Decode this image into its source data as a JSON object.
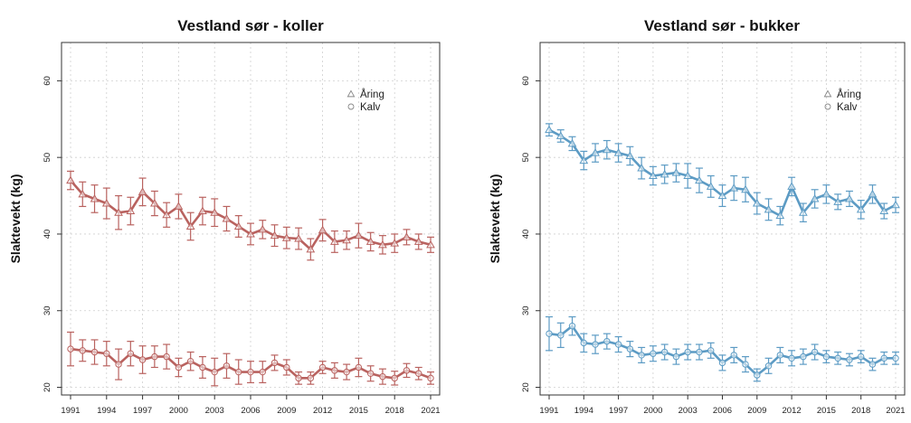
{
  "chart_data": [
    {
      "type": "line",
      "title": "Vestland sør - koller",
      "xlabel": "",
      "ylabel": "Slaktevekt (kg)",
      "xlim": [
        1991,
        2021
      ],
      "ylim": [
        19,
        65
      ],
      "yticks": [
        20,
        30,
        40,
        50,
        60
      ],
      "xticks": [
        1991,
        1994,
        1997,
        2000,
        2003,
        2006,
        2009,
        2012,
        2015,
        2018,
        2021
      ],
      "grid": true,
      "legend_position": "top-right",
      "color": "#b9625f",
      "error_bars": true,
      "x": [
        1991,
        1992,
        1993,
        1994,
        1995,
        1996,
        1997,
        1998,
        1999,
        2000,
        2001,
        2002,
        2003,
        2004,
        2005,
        2006,
        2007,
        2008,
        2009,
        2010,
        2011,
        2012,
        2013,
        2014,
        2015,
        2016,
        2017,
        2018,
        2019,
        2020,
        2021
      ],
      "series": [
        {
          "name": "Åring",
          "marker": "triangle",
          "values": [
            47.0,
            45.2,
            44.6,
            44.0,
            42.8,
            43.0,
            45.5,
            44.0,
            42.5,
            43.6,
            41.0,
            43.0,
            42.8,
            42.0,
            41.0,
            40.0,
            40.6,
            39.8,
            39.5,
            39.4,
            38.0,
            40.5,
            39.0,
            39.2,
            39.8,
            39.0,
            38.6,
            38.8,
            39.6,
            39.0,
            38.6
          ],
          "errors": [
            1.2,
            1.6,
            1.8,
            2.0,
            2.2,
            1.8,
            1.8,
            1.6,
            1.6,
            1.6,
            1.8,
            1.8,
            1.8,
            1.6,
            1.4,
            1.4,
            1.2,
            1.4,
            1.4,
            1.4,
            1.4,
            1.4,
            1.4,
            1.2,
            1.6,
            1.2,
            1.2,
            1.2,
            1.0,
            1.0,
            1.0
          ]
        },
        {
          "name": "Kalv",
          "marker": "circle",
          "values": [
            25.0,
            24.8,
            24.6,
            24.4,
            23.0,
            24.4,
            23.6,
            24.0,
            24.0,
            22.6,
            23.4,
            22.6,
            22.0,
            22.8,
            22.0,
            22.0,
            22.0,
            23.2,
            22.6,
            21.2,
            21.2,
            22.6,
            22.2,
            22.0,
            22.6,
            21.8,
            21.4,
            21.2,
            22.2,
            21.8,
            21.2
          ],
          "errors": [
            2.2,
            1.4,
            1.6,
            1.6,
            2.0,
            1.6,
            1.8,
            1.4,
            1.6,
            1.2,
            1.2,
            1.4,
            1.8,
            1.6,
            1.6,
            1.4,
            1.4,
            1.0,
            1.0,
            0.8,
            0.8,
            0.8,
            1.0,
            1.0,
            1.2,
            1.0,
            1.0,
            0.9,
            0.9,
            0.8,
            0.8
          ]
        }
      ]
    },
    {
      "type": "line",
      "title": "Vestland sør - bukker",
      "xlabel": "",
      "ylabel": "Slaktevekt (kg)",
      "xlim": [
        1991,
        2021
      ],
      "ylim": [
        19,
        65
      ],
      "yticks": [
        20,
        30,
        40,
        50,
        60
      ],
      "xticks": [
        1991,
        1994,
        1997,
        2000,
        2003,
        2006,
        2009,
        2012,
        2015,
        2018,
        2021
      ],
      "grid": true,
      "legend_position": "top-right",
      "color": "#5c9bc4",
      "error_bars": true,
      "x": [
        1991,
        1992,
        1993,
        1994,
        1995,
        1996,
        1997,
        1998,
        1999,
        2000,
        2001,
        2002,
        2003,
        2004,
        2005,
        2006,
        2007,
        2008,
        2009,
        2010,
        2011,
        2012,
        2013,
        2014,
        2015,
        2016,
        2017,
        2018,
        2019,
        2020,
        2021
      ],
      "series": [
        {
          "name": "Åring",
          "marker": "triangle",
          "values": [
            53.6,
            52.8,
            51.8,
            49.6,
            50.6,
            51.0,
            50.6,
            50.2,
            48.6,
            47.6,
            47.8,
            48.0,
            47.6,
            47.0,
            46.2,
            45.0,
            46.0,
            45.8,
            44.0,
            43.2,
            42.4,
            46.2,
            42.8,
            44.6,
            45.2,
            44.2,
            44.6,
            43.2,
            45.2,
            43.0,
            43.8
          ],
          "errors": [
            0.8,
            0.8,
            0.9,
            1.2,
            1.2,
            1.2,
            1.2,
            1.2,
            1.4,
            1.2,
            1.2,
            1.2,
            1.6,
            1.6,
            1.4,
            1.4,
            1.6,
            1.6,
            1.4,
            1.4,
            1.2,
            1.2,
            1.2,
            1.2,
            1.2,
            1.0,
            1.0,
            1.2,
            1.2,
            1.0,
            1.0
          ]
        },
        {
          "name": "Kalv",
          "marker": "circle",
          "values": [
            27.0,
            26.8,
            28.0,
            25.8,
            25.6,
            26.0,
            25.6,
            25.0,
            24.2,
            24.4,
            24.6,
            24.0,
            24.6,
            24.6,
            24.8,
            23.2,
            24.2,
            23.0,
            21.6,
            22.8,
            24.2,
            23.8,
            24.0,
            24.6,
            24.0,
            23.8,
            23.6,
            24.0,
            23.0,
            23.8,
            23.8
          ],
          "errors": [
            2.2,
            1.6,
            1.2,
            1.2,
            1.2,
            1.0,
            1.0,
            1.0,
            1.0,
            1.0,
            1.0,
            1.0,
            1.0,
            1.0,
            1.0,
            1.0,
            1.0,
            1.0,
            0.8,
            1.0,
            1.0,
            1.0,
            1.0,
            1.0,
            0.8,
            0.8,
            0.8,
            0.8,
            0.8,
            0.8,
            0.8
          ]
        }
      ]
    }
  ]
}
